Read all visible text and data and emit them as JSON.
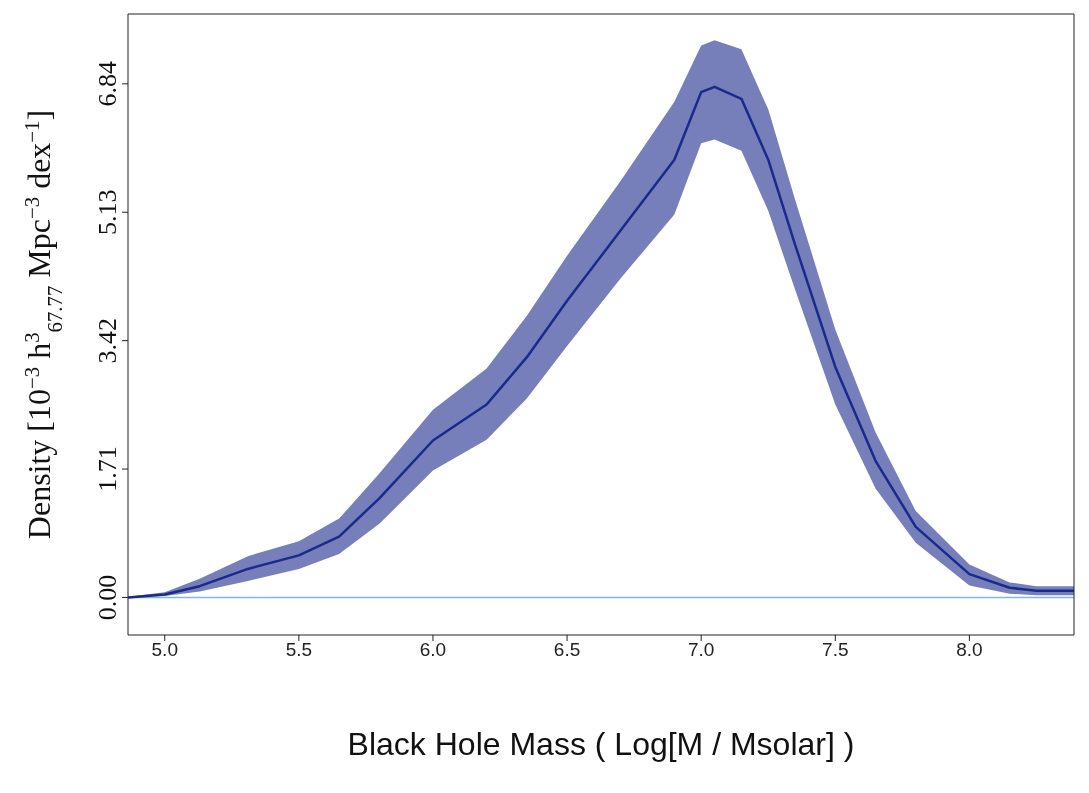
{
  "chart_data": {
    "type": "line",
    "xlabel": "Black Hole Mass ( Log[M / Msolar] )",
    "ylabel": "Density [10$^{−3}$ h$^{3}$$_{67.77}$ Mpc$^{−3}$ dex$^{−1}$]",
    "x": [
      4.863,
      5.0,
      5.13,
      5.31,
      5.5,
      5.65,
      5.8,
      6.0,
      6.2,
      6.35,
      6.5,
      6.7,
      6.9,
      7.0,
      7.05,
      7.15,
      7.25,
      7.35,
      7.5,
      7.65,
      7.8,
      8.0,
      8.15,
      8.25,
      8.39
    ],
    "series": [
      {
        "color": "#1a2a8c",
        "values": [
          0,
          0.04,
          0.15,
          0.38,
          0.56,
          0.81,
          1.32,
          2.09,
          2.57,
          3.2,
          3.95,
          4.89,
          5.83,
          6.73,
          6.8,
          6.64,
          5.83,
          4.7,
          3.07,
          1.82,
          0.94,
          0.31,
          0.13,
          0.09,
          0.09
        ],
        "lower": [
          0,
          0.02,
          0.08,
          0.22,
          0.38,
          0.58,
          0.98,
          1.69,
          2.1,
          2.65,
          3.35,
          4.25,
          5.1,
          6.05,
          6.1,
          5.95,
          5.15,
          4.1,
          2.57,
          1.45,
          0.73,
          0.16,
          0.05,
          0.03,
          0.03
        ],
        "upper": [
          0.01,
          0.07,
          0.25,
          0.55,
          0.75,
          1.05,
          1.65,
          2.5,
          3.05,
          3.75,
          4.55,
          5.55,
          6.6,
          7.35,
          7.42,
          7.3,
          6.5,
          5.3,
          3.57,
          2.2,
          1.15,
          0.44,
          0.2,
          0.15,
          0.15
        ]
      }
    ],
    "xlim": [
      4.863,
      8.39
    ],
    "xticks": [
      {
        "value": 5,
        "label": "5.0"
      },
      5.5,
      {
        "value": 6,
        "label": "6.0"
      },
      6.5,
      {
        "value": 7,
        "label": "7.0"
      },
      7.5,
      {
        "value": 8,
        "label": "8.0"
      }
    ],
    "ylim": [
      -0.5,
      7.77
    ],
    "yticks": [
      {
        "value": 0,
        "label": "0.00"
      },
      1.71,
      3.42,
      5.13,
      6.84
    ],
    "ref_lines": [
      {
        "axis": "y",
        "value": 0,
        "color": "#7fb8e0"
      }
    ],
    "marker": "none",
    "line_style": "solid"
  }
}
